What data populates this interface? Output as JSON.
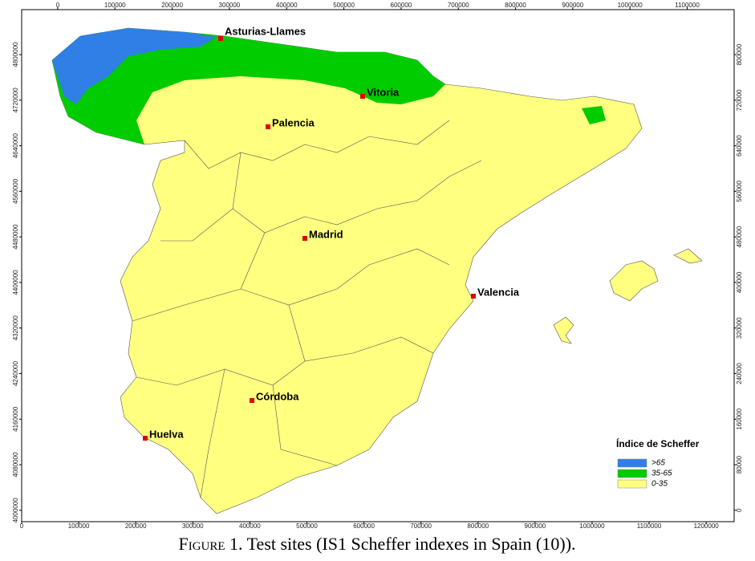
{
  "map": {
    "top_axis": {
      "xlim": [
        -63000,
        1182000
      ],
      "ticks": [
        0,
        100000,
        200000,
        300000,
        400000,
        500000,
        600000,
        700000,
        800000,
        900000,
        1000000,
        1100000
      ]
    },
    "bottom_axis": {
      "xlim": [
        0,
        1249000
      ],
      "ticks": [
        0,
        100000,
        200000,
        300000,
        400000,
        500000,
        600000,
        700000,
        800000,
        900000,
        1000000,
        1100000,
        1200000
      ]
    },
    "left_axis": {
      "ylim": [
        3980000,
        4879000
      ],
      "ticks": [
        4000000,
        4080000,
        4160000,
        4240000,
        4320000,
        4400000,
        4480000,
        4560000,
        4640000,
        4720000,
        4800000
      ]
    },
    "right_axis": {
      "ylim": [
        -20000,
        879000
      ],
      "ticks": [
        0,
        80000,
        160000,
        240000,
        320000,
        400000,
        480000,
        560000,
        640000,
        720000,
        800000
      ]
    },
    "sites": [
      "Asturias-Llames",
      "Vitoria",
      "Palencia",
      "Madrid",
      "Valencia",
      "Córdoba",
      "Huelva"
    ],
    "legend": {
      "title": "Índice de Scheffer",
      "entries": [
        {
          "label": ">65",
          "color": "#2f7fe6"
        },
        {
          "label": "35-65",
          "color": "#00cc00"
        },
        {
          "label": "0-35",
          "color": "#ffff80"
        }
      ]
    },
    "caption": {
      "label": "Figure 1.",
      "text": "Test sites (IS1 Scheffer indexes in Spain (10))."
    }
  }
}
